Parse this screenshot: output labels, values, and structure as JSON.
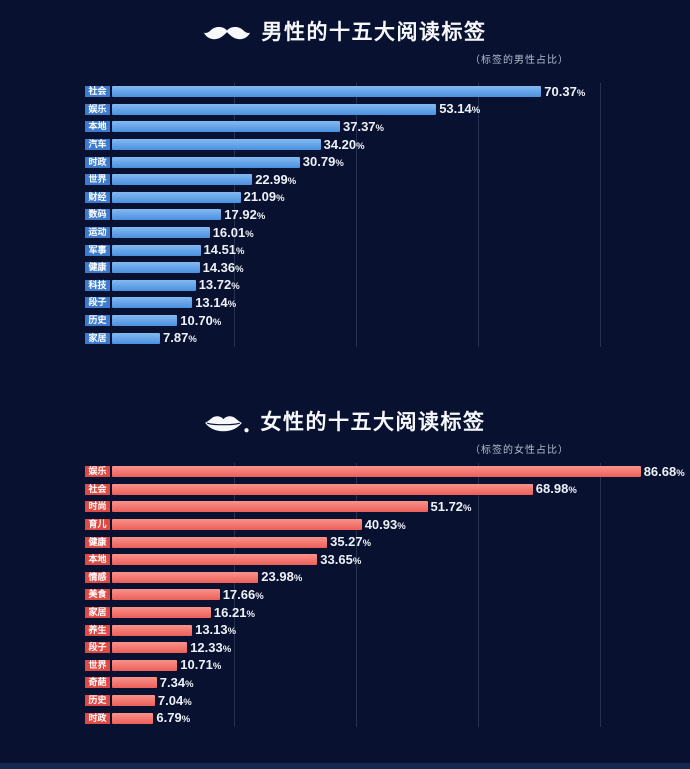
{
  "page": {
    "background_color": "#081230",
    "footer_strip_color": "#16284f",
    "gridline_color": "rgba(160,180,220,0.20)",
    "text_color": "#f6f8fc",
    "subtitle_color": "#b4bdd0"
  },
  "chart_data": [
    {
      "type": "bar",
      "orientation": "horizontal",
      "icon": "mustache-icon",
      "title": "男性的十五大阅读标签",
      "subtitle": "（标签的男性占比）",
      "value_suffix": "%",
      "xlim": [
        0,
        100
      ],
      "gridline_values": [
        20,
        40,
        60,
        80
      ],
      "legend": "none",
      "bar_color_top": "#84baf3",
      "bar_color": "#4b90de",
      "chip_color": "#3d7bd0",
      "categories": [
        "社会",
        "娱乐",
        "本地",
        "汽车",
        "时政",
        "世界",
        "财经",
        "数码",
        "运动",
        "军事",
        "健康",
        "科技",
        "段子",
        "历史",
        "家居"
      ],
      "values": [
        70.37,
        53.14,
        37.37,
        34.2,
        30.79,
        22.99,
        21.09,
        17.92,
        16.01,
        14.51,
        14.36,
        13.72,
        13.14,
        10.7,
        7.87
      ]
    },
    {
      "type": "bar",
      "orientation": "horizontal",
      "icon": "lips-icon",
      "title": "女性的十五大阅读标签",
      "subtitle": "（标签的女性占比）",
      "value_suffix": "%",
      "xlim": [
        0,
        100
      ],
      "gridline_values": [
        20,
        40,
        60,
        80
      ],
      "legend": "none",
      "bar_color_top": "#f9938c",
      "bar_color": "#ec5f59",
      "chip_color": "#df4a44",
      "categories": [
        "娱乐",
        "社会",
        "时尚",
        "育儿",
        "健康",
        "本地",
        "情感",
        "美食",
        "家居",
        "养生",
        "段子",
        "世界",
        "奇葩",
        "历史",
        "时政"
      ],
      "values": [
        86.68,
        68.98,
        51.72,
        40.93,
        35.27,
        33.65,
        23.98,
        17.66,
        16.21,
        13.13,
        12.33,
        10.71,
        7.34,
        7.04,
        6.79
      ]
    }
  ]
}
